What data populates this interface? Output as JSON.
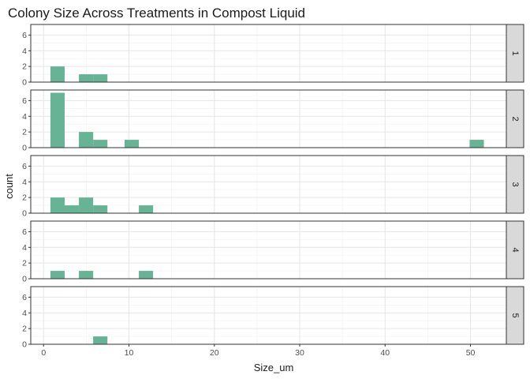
{
  "chart_data": {
    "type": "histogram",
    "title": "Colony Size Across Treatments in Compost Liquid",
    "xlabel": "Size_um",
    "ylabel": "count",
    "xlim": [
      -1.5,
      54.2
    ],
    "ylim": [
      0,
      7.35
    ],
    "x_ticks": [
      0,
      10,
      20,
      30,
      40,
      50
    ],
    "y_ticks": [
      0,
      2,
      4,
      6
    ],
    "bin_width": 1.67,
    "bar_color": "#66b395",
    "grid": true,
    "facet_strip_position": "right",
    "panels": [
      {
        "label": "1",
        "bins": [
          {
            "x0": 0.8,
            "x1": 2.47,
            "count": 2
          },
          {
            "x0": 4.14,
            "x1": 5.81,
            "count": 1
          },
          {
            "x0": 5.81,
            "x1": 7.48,
            "count": 1
          }
        ]
      },
      {
        "label": "2",
        "bins": [
          {
            "x0": 0.8,
            "x1": 2.47,
            "count": 7
          },
          {
            "x0": 4.14,
            "x1": 5.81,
            "count": 2
          },
          {
            "x0": 5.81,
            "x1": 7.48,
            "count": 1
          },
          {
            "x0": 9.49,
            "x1": 11.16,
            "count": 1
          },
          {
            "x0": 49.9,
            "x1": 51.57,
            "count": 1
          }
        ]
      },
      {
        "label": "3",
        "bins": [
          {
            "x0": 0.8,
            "x1": 2.47,
            "count": 2
          },
          {
            "x0": 2.47,
            "x1": 4.14,
            "count": 1
          },
          {
            "x0": 4.14,
            "x1": 5.81,
            "count": 2
          },
          {
            "x0": 5.81,
            "x1": 7.48,
            "count": 1
          },
          {
            "x0": 11.16,
            "x1": 12.83,
            "count": 1
          }
        ]
      },
      {
        "label": "4",
        "bins": [
          {
            "x0": 0.8,
            "x1": 2.47,
            "count": 1
          },
          {
            "x0": 4.14,
            "x1": 5.81,
            "count": 1
          },
          {
            "x0": 11.16,
            "x1": 12.83,
            "count": 1
          }
        ]
      },
      {
        "label": "5",
        "bins": [
          {
            "x0": 5.81,
            "x1": 7.48,
            "count": 1
          }
        ]
      }
    ]
  }
}
